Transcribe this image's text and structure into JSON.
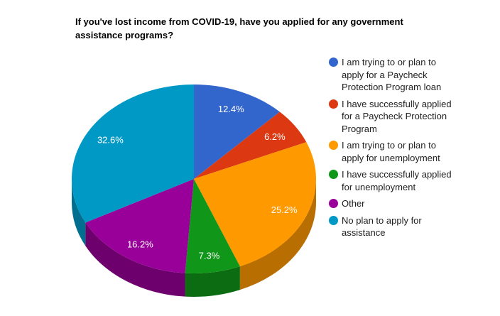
{
  "chart_data": {
    "type": "pie",
    "is_3d": true,
    "title": "If you've lost income from COVID-19, have you applied for any government assistance programs?",
    "legend_position": "right",
    "label_format": "percent",
    "slices": [
      {
        "label": "I am trying to or plan to apply for a Paycheck Protection Program loan",
        "value_pct": 12.4,
        "display": "12.4%",
        "color": "#3366CC"
      },
      {
        "label": "I have successfully applied for a Paycheck Protection Program",
        "value_pct": 6.2,
        "display": "6.2%",
        "color": "#DC3912"
      },
      {
        "label": "I am trying to or plan to apply for unemployment",
        "value_pct": 25.2,
        "display": "25.2%",
        "color": "#FF9900"
      },
      {
        "label": "I have successfully applied for unemployment",
        "value_pct": 7.3,
        "display": "7.3%",
        "color": "#109618"
      },
      {
        "label": "Other",
        "value_pct": 16.2,
        "display": "16.2%",
        "color": "#990099"
      },
      {
        "label": "No plan to apply for assistance",
        "value_pct": 32.6,
        "display": "32.6%",
        "color": "#0099C6"
      }
    ]
  },
  "colors": {
    "background": "#ffffff",
    "title_text": "#000000",
    "legend_text": "#212121",
    "slice_label_text": "#ffffff"
  }
}
